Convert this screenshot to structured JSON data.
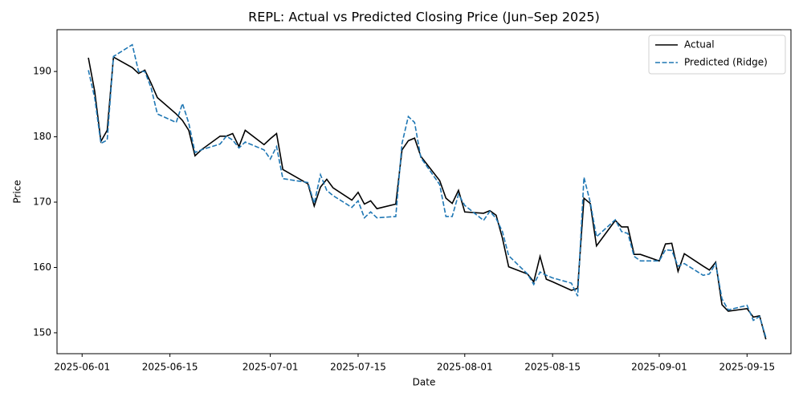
{
  "chart_data": {
    "type": "line",
    "title": "REPL: Actual vs Predicted Closing Price (Jun–Sep 2025)",
    "xlabel": "Date",
    "ylabel": "Price",
    "x": [
      "2025-06-02",
      "2025-06-03",
      "2025-06-04",
      "2025-06-05",
      "2025-06-06",
      "2025-06-09",
      "2025-06-10",
      "2025-06-11",
      "2025-06-12",
      "2025-06-13",
      "2025-06-16",
      "2025-06-17",
      "2025-06-18",
      "2025-06-19",
      "2025-06-20",
      "2025-06-23",
      "2025-06-24",
      "2025-06-25",
      "2025-06-26",
      "2025-06-27",
      "2025-06-30",
      "2025-07-01",
      "2025-07-02",
      "2025-07-03",
      "2025-07-07",
      "2025-07-08",
      "2025-07-09",
      "2025-07-10",
      "2025-07-11",
      "2025-07-14",
      "2025-07-15",
      "2025-07-16",
      "2025-07-17",
      "2025-07-18",
      "2025-07-21",
      "2025-07-22",
      "2025-07-23",
      "2025-07-24",
      "2025-07-25",
      "2025-07-28",
      "2025-07-29",
      "2025-07-30",
      "2025-07-31",
      "2025-08-01",
      "2025-08-04",
      "2025-08-05",
      "2025-08-06",
      "2025-08-07",
      "2025-08-08",
      "2025-08-11",
      "2025-08-12",
      "2025-08-13",
      "2025-08-14",
      "2025-08-15",
      "2025-08-18",
      "2025-08-19",
      "2025-08-20",
      "2025-08-21",
      "2025-08-22",
      "2025-08-25",
      "2025-08-26",
      "2025-08-27",
      "2025-08-28",
      "2025-08-29",
      "2025-09-01",
      "2025-09-02",
      "2025-09-03",
      "2025-09-04",
      "2025-09-05",
      "2025-09-08",
      "2025-09-09",
      "2025-09-10",
      "2025-09-11",
      "2025-09-12",
      "2025-09-15",
      "2025-09-16",
      "2025-09-17",
      "2025-09-18"
    ],
    "series": [
      {
        "name": "Actual",
        "color": "#000000",
        "dash": false,
        "values": [
          192.1,
          187,
          179.3,
          181,
          192.2,
          190.6,
          189.7,
          190.2,
          188.2,
          186,
          183.5,
          182.5,
          181,
          177.1,
          178,
          180.1,
          180.1,
          180.5,
          178.5,
          181,
          178.8,
          179.7,
          180.5,
          175,
          172.8,
          169.4,
          172.3,
          173.5,
          172.2,
          170.3,
          171.5,
          169.7,
          170.2,
          169,
          169.7,
          178,
          179.4,
          179.8,
          177,
          173.3,
          170.6,
          169.8,
          171.8,
          168.5,
          168.3,
          168.7,
          168,
          164.5,
          160.1,
          159,
          157.8,
          161.7,
          158.2,
          157.8,
          156.5,
          156.8,
          170.6,
          169.8,
          163.3,
          167.2,
          166.2,
          166.2,
          162,
          162,
          161,
          163.6,
          163.7,
          159.4,
          162.1,
          160.2,
          159.6,
          160.8,
          154.3,
          153.3,
          153.7,
          152.4,
          152.6,
          149
        ]
      },
      {
        "name": "Predicted (Ridge)",
        "color": "#1f77b4",
        "dash": true,
        "values": [
          190.2,
          186,
          179,
          179.5,
          192.3,
          194.1,
          190,
          190,
          187.5,
          183.5,
          182.2,
          185.1,
          182.1,
          177.6,
          178,
          178.9,
          180.1,
          179.5,
          178.3,
          179.2,
          178,
          176.6,
          178.5,
          173.6,
          173,
          169.8,
          174.2,
          171.8,
          171,
          169.2,
          170.2,
          167.6,
          168.5,
          167.6,
          167.8,
          179,
          183.1,
          182.2,
          176.8,
          172.7,
          167.8,
          167.8,
          171.2,
          169.5,
          167.2,
          168.6,
          167.5,
          165.5,
          161.8,
          159,
          157.4,
          159.3,
          158.8,
          158.4,
          157.6,
          155.6,
          173.8,
          170,
          164.7,
          167.3,
          165.5,
          165.2,
          161.7,
          161,
          161,
          162.7,
          162.6,
          160.2,
          160.6,
          158.8,
          159,
          160.6,
          155.2,
          153.5,
          154.2,
          151.9,
          152.5,
          149.3
        ]
      }
    ],
    "xlim": [
      "2025-05-28",
      "2025-09-22"
    ],
    "xticks": [
      "2025-06-01",
      "2025-06-15",
      "2025-07-01",
      "2025-07-15",
      "2025-08-01",
      "2025-08-15",
      "2025-09-01",
      "2025-09-15"
    ],
    "ylim": [
      146.8,
      196.4
    ],
    "yticks": [
      150,
      160,
      170,
      180,
      190
    ],
    "grid": false,
    "legend": "upper right"
  }
}
